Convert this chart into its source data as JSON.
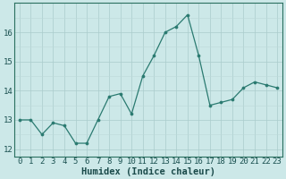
{
  "x": [
    0,
    1,
    2,
    3,
    4,
    5,
    6,
    7,
    8,
    9,
    10,
    11,
    12,
    13,
    14,
    15,
    16,
    17,
    18,
    19,
    20,
    21,
    22,
    23
  ],
  "y": [
    13.0,
    13.0,
    12.5,
    12.9,
    12.8,
    12.2,
    12.2,
    13.0,
    13.8,
    13.9,
    13.2,
    14.5,
    15.2,
    16.0,
    16.2,
    16.6,
    15.2,
    13.5,
    13.6,
    13.7,
    14.1,
    14.3,
    14.2,
    14.1
  ],
  "line_color": "#2a7a70",
  "marker_color": "#2a7a70",
  "bg_color": "#cce8e8",
  "grid_color_major": "#aacccc",
  "grid_color_minor": "#bcd8d8",
  "xlabel": "Humidex (Indice chaleur)",
  "ylim": [
    11.75,
    17.0
  ],
  "xlim": [
    -0.5,
    23.5
  ],
  "yticks": [
    12,
    13,
    14,
    15,
    16
  ],
  "xticks": [
    0,
    1,
    2,
    3,
    4,
    5,
    6,
    7,
    8,
    9,
    10,
    11,
    12,
    13,
    14,
    15,
    16,
    17,
    18,
    19,
    20,
    21,
    22,
    23
  ],
  "tick_fontsize": 6.5,
  "xlabel_fontsize": 7.5
}
